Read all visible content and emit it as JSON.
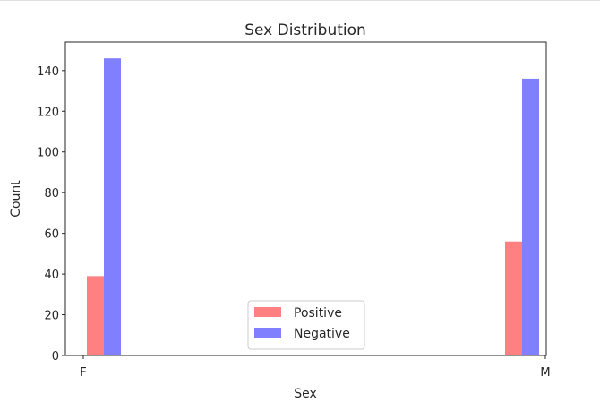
{
  "chart_data": {
    "type": "bar",
    "title": "Sex Distribution",
    "xlabel": "Sex",
    "ylabel": "Count",
    "categories": [
      "F",
      "M"
    ],
    "ylim": [
      0,
      154
    ],
    "yticks": [
      0,
      20,
      40,
      60,
      80,
      100,
      120,
      140
    ],
    "grid": false,
    "legend_position": "lower center",
    "series": [
      {
        "name": "Positive",
        "color": "#ff8080",
        "values": [
          39,
          56
        ]
      },
      {
        "name": "Negative",
        "color": "#8080ff",
        "values": [
          146,
          136
        ]
      }
    ]
  }
}
